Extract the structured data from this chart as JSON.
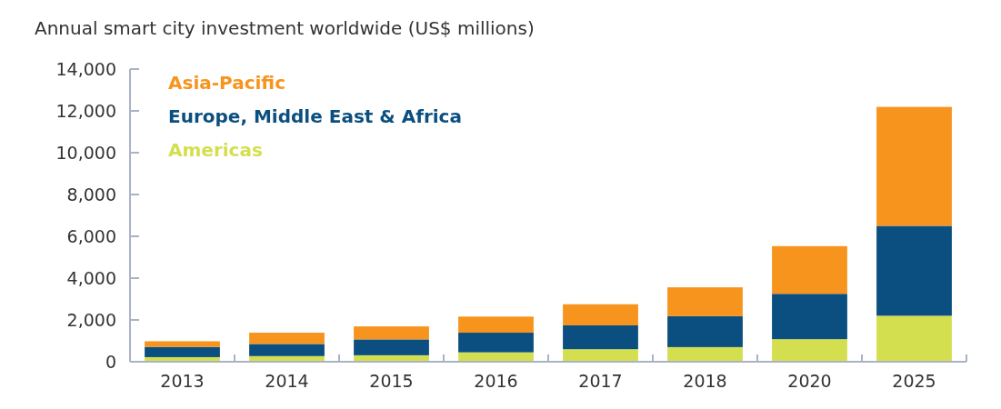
{
  "chart_data": {
    "type": "bar",
    "title": "Annual smart city investment worldwide (US$ millions)",
    "categories": [
      "2013",
      "2014",
      "2015",
      "2016",
      "2017",
      "2018",
      "2020",
      "2025"
    ],
    "stacked": true,
    "series": [
      {
        "name": "Americas",
        "color": "#d4df4f",
        "values": [
          220,
          270,
          310,
          450,
          600,
          700,
          1080,
          2200
        ]
      },
      {
        "name": "Europe, Middle East & Africa",
        "color": "#0b4f80",
        "values": [
          490,
          580,
          760,
          940,
          1140,
          1480,
          2170,
          4300
        ]
      },
      {
        "name": "Asia-Pacific",
        "color": "#f7941d",
        "values": [
          270,
          540,
          620,
          770,
          1010,
          1380,
          2280,
          5690
        ]
      }
    ],
    "ylim": [
      0,
      14000
    ],
    "yticks": [
      {
        "value": 0,
        "label": "0"
      },
      {
        "value": 2000,
        "label": "2,000"
      },
      {
        "value": 4000,
        "label": "4,000"
      },
      {
        "value": 6000,
        "label": "6,000"
      },
      {
        "value": 8000,
        "label": "8,000"
      },
      {
        "value": 10000,
        "label": "10,000"
      },
      {
        "value": 12000,
        "label": "12,000"
      },
      {
        "value": 14000,
        "label": "14,000"
      }
    ],
    "grid": false,
    "legend": "top left"
  }
}
